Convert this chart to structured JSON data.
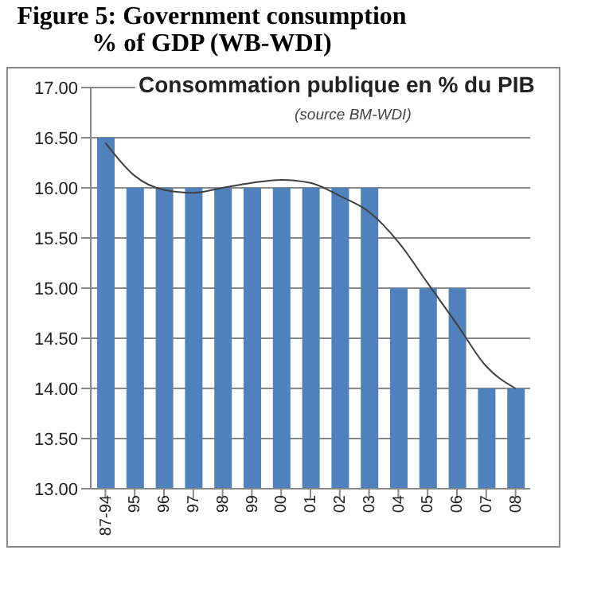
{
  "chart_data": {
    "type": "bar",
    "title": "Figure 5: Government consumption % of GDP (WB-WDI)",
    "subtitle": "Consommation publique en % du PIB",
    "annotations": [
      "(source BM-WDI)"
    ],
    "categories": [
      "87-94",
      "95",
      "96",
      "97",
      "98",
      "99",
      "00",
      "01",
      "02",
      "03",
      "04",
      "05",
      "06",
      "07",
      "08"
    ],
    "series": [
      {
        "color": "#4f81bd",
        "values": [
          16.5,
          16,
          16,
          16,
          16,
          16,
          16,
          16,
          16,
          16,
          15,
          15,
          15,
          14,
          14
        ]
      },
      {
        "type": "line",
        "color": "#404040",
        "x": [
          "87-94",
          "95",
          "96",
          "97",
          "98",
          "99",
          "00",
          "01",
          "02",
          "03",
          "04",
          "05",
          "06",
          "07",
          "08"
        ],
        "values": [
          16.45,
          16.12,
          15.98,
          15.95,
          16.0,
          16.05,
          16.08,
          16.05,
          15.92,
          15.76,
          15.46,
          15.05,
          14.64,
          14.22,
          14.0
        ]
      }
    ],
    "ylim": [
      13,
      17
    ],
    "yticks": [
      {
        "value": 13,
        "label": "13.00"
      },
      {
        "value": 13.5,
        "label": "13.50"
      },
      {
        "value": 14,
        "label": "14.00"
      },
      {
        "value": 14.5,
        "label": "14.50"
      },
      {
        "value": 15,
        "label": "15.00"
      },
      {
        "value": 15.5,
        "label": "15.50"
      },
      {
        "value": 16,
        "label": "16.00"
      },
      {
        "value": 16.5,
        "label": "16.50"
      },
      {
        "value": 17,
        "label": "17.00"
      }
    ],
    "grid": "y",
    "legend": false,
    "marker": "none",
    "line_style": "solid"
  }
}
